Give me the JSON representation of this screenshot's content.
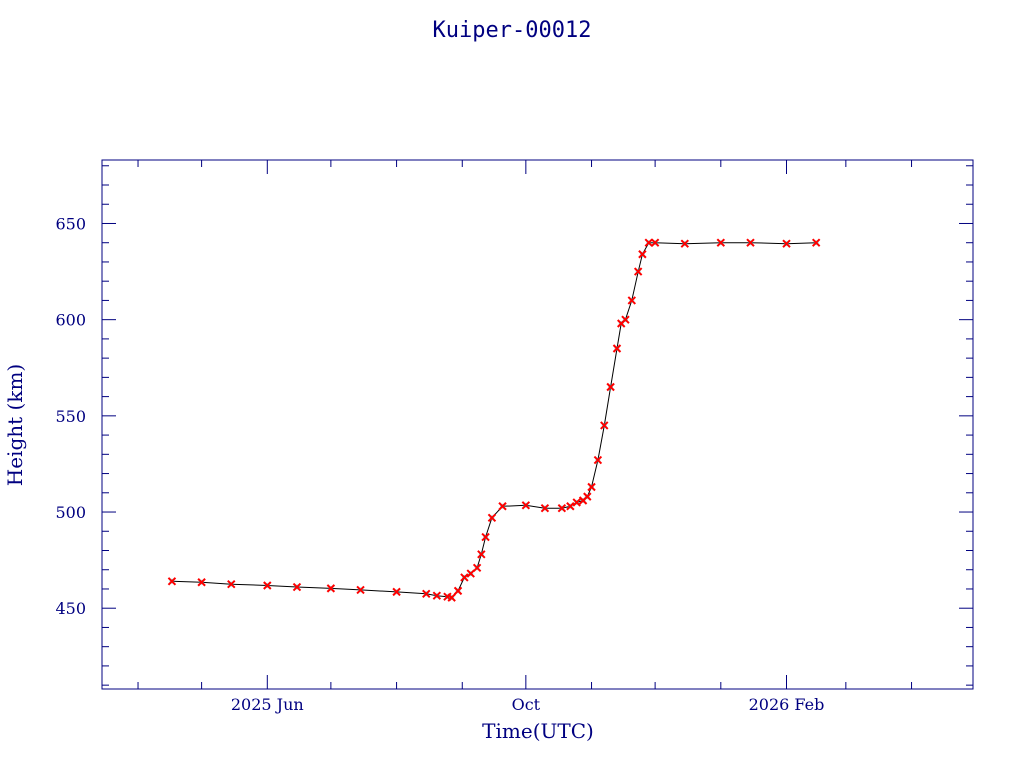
{
  "chart_data": {
    "type": "scatter",
    "title": "Kuiper-00012",
    "xlabel": "Time(UTC)",
    "ylabel": "Height (km)",
    "xlim": [
      "2025-03-15",
      "2026-04-30"
    ],
    "ylim": [
      408,
      683
    ],
    "x_major_ticks": [
      {
        "date": "2025-06-01",
        "label": "2025 Jun"
      },
      {
        "date": "2025-10-01",
        "label": "Oct"
      },
      {
        "date": "2026-02-01",
        "label": "2026 Feb"
      }
    ],
    "y_ticks": [
      450,
      500,
      550,
      600,
      650
    ],
    "y_tick_labels": [
      "450",
      "500",
      "550",
      "600",
      "650"
    ],
    "grid": false,
    "colors": {
      "axes": "#000080",
      "points": "#ff0000",
      "point_halo": "#00e5ee",
      "line": "#000000"
    },
    "series": [
      {
        "marker": "x",
        "x": [
          "2025-04-17",
          "2025-05-01",
          "2025-05-15",
          "2025-06-01",
          "2025-06-15",
          "2025-07-01",
          "2025-07-15",
          "2025-08-01",
          "2025-08-15",
          "2025-08-20",
          "2025-08-25",
          "2025-08-27",
          "2025-08-30",
          "2025-09-02",
          "2025-09-05",
          "2025-09-08",
          "2025-09-10",
          "2025-09-12",
          "2025-09-15",
          "2025-09-20",
          "2025-10-01",
          "2025-10-10",
          "2025-10-18",
          "2025-10-22",
          "2025-10-25",
          "2025-10-28",
          "2025-10-30",
          "2025-11-01",
          "2025-11-04",
          "2025-11-07",
          "2025-11-10",
          "2025-11-13",
          "2025-11-15",
          "2025-11-17",
          "2025-11-20",
          "2025-11-23",
          "2025-11-25",
          "2025-11-28",
          "2025-12-01",
          "2025-12-15",
          "2026-01-01",
          "2026-01-15",
          "2026-02-01",
          "2026-02-15"
        ],
        "y": [
          464,
          463.5,
          462.5,
          461.8,
          461,
          460.3,
          459.5,
          458.5,
          457.5,
          456.5,
          456,
          455.5,
          459,
          466,
          468,
          471,
          478,
          487,
          497,
          503,
          503.5,
          502,
          502,
          503,
          505,
          506,
          508,
          513,
          527,
          545,
          565,
          585,
          598,
          600,
          610,
          625,
          634,
          640,
          640,
          639.5,
          640,
          640,
          639.5,
          640
        ]
      }
    ]
  }
}
